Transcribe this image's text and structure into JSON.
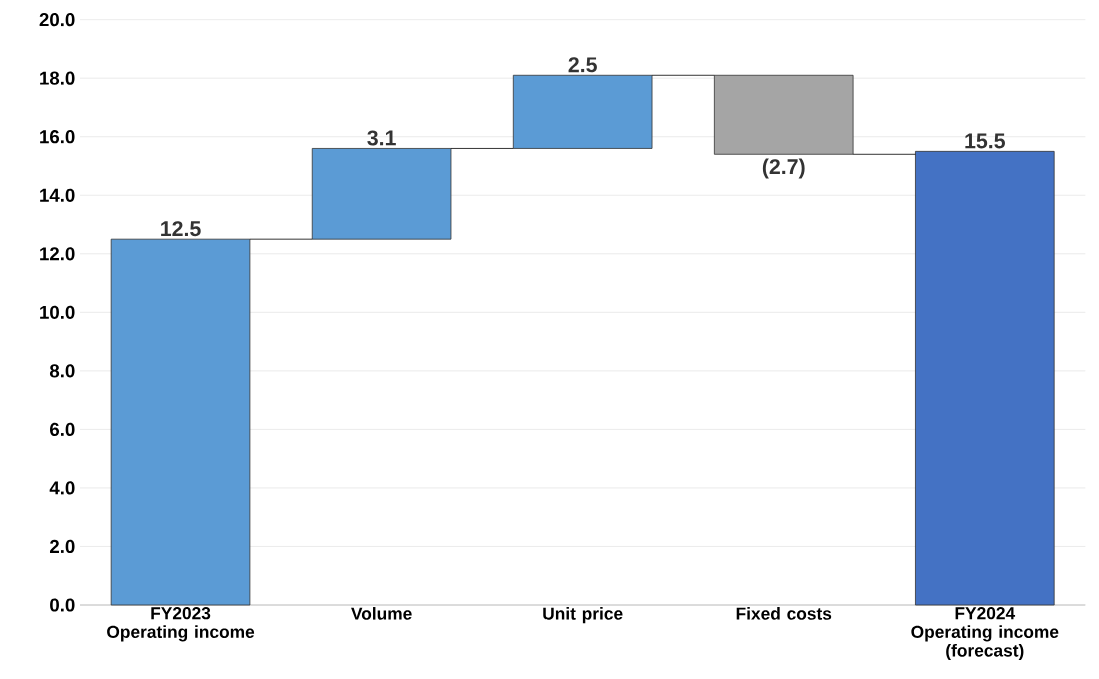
{
  "chart_data": {
    "type": "bar",
    "categories": [
      "FY2023\nOperating income",
      "Volume",
      "Unit price",
      "Fixed costs",
      "FY2024\nOperating income\n(forecast)"
    ],
    "values": [
      12.5,
      3.1,
      2.5,
      -2.7,
      15.5
    ],
    "base": [
      0,
      12.5,
      15.6,
      18.1,
      0
    ],
    "colors": [
      "#5b9bd5",
      "#5b9bd5",
      "#5b9bd5",
      "#a5a5a5",
      "#4472c4"
    ],
    "value_labels": [
      "12.5",
      "3.1",
      "2.5",
      "(2.7)",
      "15.5"
    ],
    "ylim": [
      0,
      20
    ],
    "yticks": [
      {
        "value": 0,
        "label": "0.0"
      },
      {
        "value": 2,
        "label": "2.0"
      },
      {
        "value": 4,
        "label": "4.0"
      },
      {
        "value": 6,
        "label": "6.0"
      },
      {
        "value": 8,
        "label": "8.0"
      },
      {
        "value": 10,
        "label": "10.0"
      },
      {
        "value": 12,
        "label": "12.0"
      },
      {
        "value": 14,
        "label": "14.0"
      },
      {
        "value": 16,
        "label": "16.0"
      },
      {
        "value": 18,
        "label": "18.0"
      },
      {
        "value": 20,
        "label": "20.0"
      }
    ],
    "grid": "y"
  }
}
